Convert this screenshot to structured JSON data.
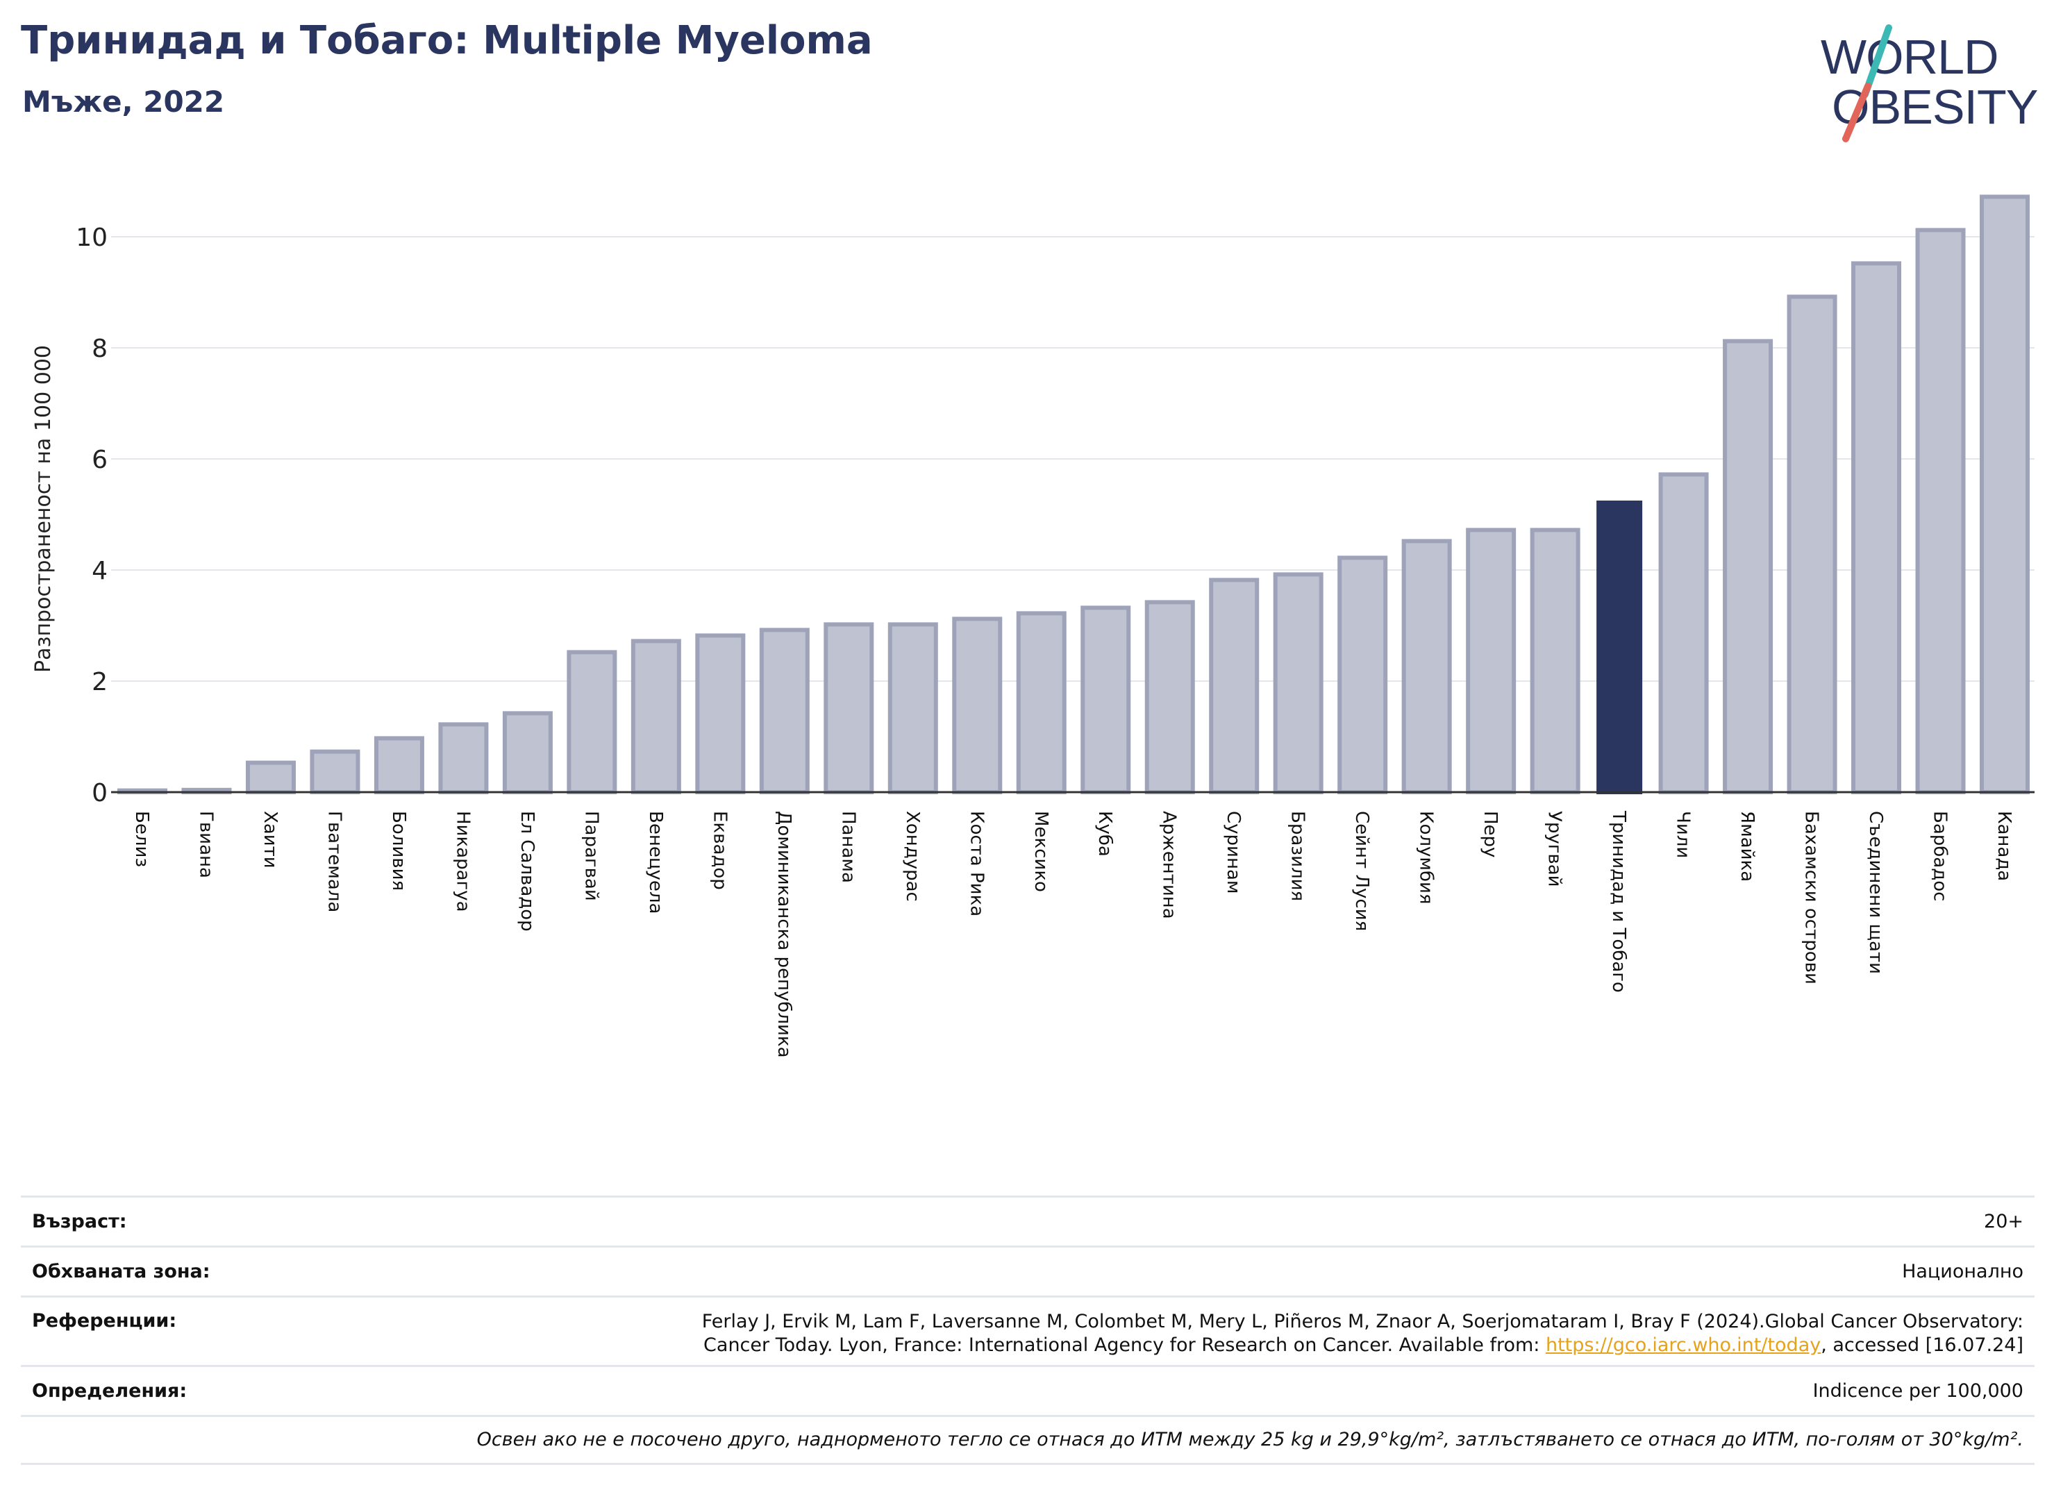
{
  "header": {
    "title": "Тринидад и Тобаго: Multiple Myeloma",
    "subtitle": "Мъже, 2022"
  },
  "logo": {
    "line1": "WORLD",
    "line2": "OBESITY",
    "colors": {
      "text": "#2a3560",
      "slash_teal": "#3cb9b4",
      "slash_red": "#e2655a"
    }
  },
  "colors": {
    "bar_fill": "#bfc2d0",
    "bar_stroke": "#9ea3ba",
    "highlight_fill": "#2a3560",
    "grid": "#e4e6ee",
    "axis": "#333333"
  },
  "chart_data": {
    "type": "bar",
    "title": "",
    "xlabel": "",
    "ylabel": "Разпространеност  на 100 000",
    "ylim": [
      0,
      11.2
    ],
    "yticks": [
      0,
      2,
      4,
      6,
      8,
      10
    ],
    "grid": true,
    "highlight_category": "Тринидад и Тобаго",
    "categories": [
      "Белиз",
      "Гвиана",
      "Хаити",
      "Гватемала",
      "Боливия",
      "Никарагуа",
      "Ел Салвадор",
      "Парагвай",
      "Венецуела",
      "Еквадор",
      "Доминиканска република",
      "Панама",
      "Хондурас",
      "Коста Рика",
      "Мексико",
      "Куба",
      "Аржентина",
      "Суринам",
      "Бразилия",
      "Сейнт Лусия",
      "Колумбия",
      "Перу",
      "Уругвай",
      "Тринидад и Тобаго",
      "Чили",
      "Ямайка",
      "Бахамски острови",
      "Съединени щати",
      "Барбадос",
      "Канада"
    ],
    "values": [
      0.03,
      0.04,
      0.53,
      0.73,
      0.97,
      1.22,
      1.42,
      2.52,
      2.72,
      2.82,
      2.92,
      3.02,
      3.02,
      3.12,
      3.22,
      3.32,
      3.42,
      3.82,
      3.92,
      4.22,
      4.52,
      4.72,
      4.72,
      5.25,
      5.72,
      8.12,
      8.92,
      9.52,
      10.12,
      10.72
    ]
  },
  "meta": {
    "age_label": "Възраст:",
    "age_value": "20+",
    "coverage_label": "Обхваната зона:",
    "coverage_value": "Национално",
    "references_label": "Референции:",
    "references_line1": "Ferlay J, Ervik M, Lam F, Laversanne M, Colombet M, Mery L, Piñeros M, Znaor A, Soerjomataram I, Bray F (2024).Global Cancer Observatory:",
    "references_line2_pre": "Cancer Today. Lyon, France: International Agency for Research on Cancer. Available from: ",
    "references_link": "https://gco.iarc.who.int/today",
    "references_line2_post": ", accessed [16.07.24]",
    "definitions_label": "Определения:",
    "definitions_value": "Indicence per 100,000",
    "footnote": "Освен ако не е посочено друго, наднорменото тегло се отнася до ИТМ между 25 kg и 29,9°kg/m², затлъстяването се отнася до ИТМ, по-голям от 30°kg/m²."
  }
}
